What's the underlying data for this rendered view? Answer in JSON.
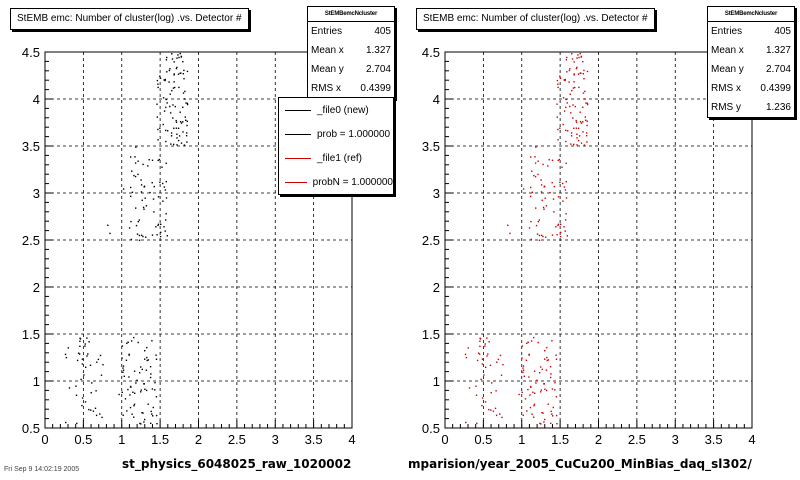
{
  "chart_data": [
    {
      "type": "scatter",
      "title": "StEMB emc: Number of cluster(log) .vs. Detector #",
      "xlabel": "st_physics_6048025_raw_1020002",
      "ylabel": "",
      "xlim": [
        0,
        4
      ],
      "ylim": [
        0.5,
        4.5
      ],
      "xticks": [
        "0",
        "0.5",
        "1",
        "1.5",
        "2",
        "2.5",
        "3",
        "3.5",
        "4"
      ],
      "yticks": [
        "0.5",
        "1",
        "1.5",
        "2",
        "2.5",
        "3",
        "3.5",
        "4",
        "4.5"
      ],
      "grid": true,
      "marker_color": "#000000",
      "stats": {
        "name": "StEMBemcNcluster",
        "rows": [
          {
            "label": "Entries",
            "value": "405"
          },
          {
            "label": "Mean x",
            "value": "1.327"
          },
          {
            "label": "Mean y",
            "value": "2.704"
          },
          {
            "label": "RMS x",
            "value": "0.4399"
          }
        ]
      },
      "legend": {
        "placement": "top-right",
        "entries": [
          {
            "label": "_file0 (new)",
            "color": "#000000"
          },
          {
            "label": "prob = 1.000000",
            "color": "#000000"
          },
          {
            "label": "_file1 (ref)",
            "color": "#cc0000"
          },
          {
            "label": "probN = 1.000000",
            "color": "#cc0000"
          }
        ]
      },
      "clusters": [
        {
          "x": [
            0.25,
            0.75
          ],
          "y": [
            0.55,
            1.5
          ],
          "n": 45
        },
        {
          "x": [
            0.95,
            1.45
          ],
          "y": [
            0.55,
            1.5
          ],
          "n": 75
        },
        {
          "x": [
            0.75,
            0.85
          ],
          "y": [
            2.55,
            2.7
          ],
          "n": 2
        },
        {
          "x": [
            1.0,
            1.6
          ],
          "y": [
            2.5,
            3.5
          ],
          "n": 70
        },
        {
          "x": [
            1.45,
            1.85
          ],
          "y": [
            3.5,
            4.5
          ],
          "n": 95
        }
      ]
    },
    {
      "type": "scatter",
      "title": "StEMB emc: Number of cluster(log) .vs. Detector #",
      "xlabel": "mparision/year_2005_CuCu200_MinBias_daq_sl302/",
      "ylabel": "",
      "xlim": [
        0,
        4
      ],
      "ylim": [
        0.5,
        4.5
      ],
      "xticks": [
        "0",
        "0.5",
        "1",
        "1.5",
        "2",
        "2.5",
        "3",
        "3.5",
        "4"
      ],
      "yticks": [
        "0.5",
        "1",
        "1.5",
        "2",
        "2.5",
        "3",
        "3.5",
        "4",
        "4.5"
      ],
      "grid": true,
      "marker_color": "#cc0000",
      "stats": {
        "name": "StEMBemcNcluster",
        "rows": [
          {
            "label": "Entries",
            "value": "405"
          },
          {
            "label": "Mean x",
            "value": "1.327"
          },
          {
            "label": "Mean y",
            "value": "2.704"
          },
          {
            "label": "RMS x",
            "value": "0.4399"
          },
          {
            "label": "RMS y",
            "value": "1.236"
          }
        ]
      },
      "clusters": [
        {
          "x": [
            0.25,
            0.75
          ],
          "y": [
            0.55,
            1.5
          ],
          "n": 45
        },
        {
          "x": [
            0.95,
            1.45
          ],
          "y": [
            0.55,
            1.5
          ],
          "n": 75
        },
        {
          "x": [
            0.75,
            0.85
          ],
          "y": [
            2.55,
            2.7
          ],
          "n": 2
        },
        {
          "x": [
            1.0,
            1.6
          ],
          "y": [
            2.5,
            3.5
          ],
          "n": 70
        },
        {
          "x": [
            1.45,
            1.85
          ],
          "y": [
            3.5,
            4.5
          ],
          "n": 95
        }
      ]
    }
  ],
  "footer": "Fri Sep 9 14:02:19 2005"
}
